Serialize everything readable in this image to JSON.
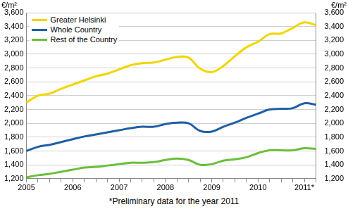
{
  "chart_data": {
    "type": "line",
    "y_label": "€/m²",
    "annotation": "*Preliminary data for the year 2011",
    "categories": [
      "2005",
      null,
      null,
      null,
      "2006",
      null,
      null,
      null,
      "2007",
      null,
      null,
      null,
      "2008",
      null,
      null,
      null,
      "2009",
      null,
      null,
      null,
      "2010",
      null,
      null,
      null,
      "2011*",
      null
    ],
    "series": [
      {
        "name": "Greater Helsinki",
        "color": "#f2d500",
        "values": [
          2300,
          2400,
          2430,
          2500,
          2560,
          2620,
          2680,
          2720,
          2780,
          2840,
          2870,
          2880,
          2920,
          2960,
          2950,
          2790,
          2740,
          2830,
          2970,
          3100,
          3180,
          3290,
          3300,
          3380,
          3460,
          3420
        ]
      },
      {
        "name": "Whole Country",
        "color": "#1f5fa6",
        "values": [
          1600,
          1660,
          1690,
          1730,
          1770,
          1810,
          1840,
          1870,
          1900,
          1930,
          1950,
          1950,
          1990,
          2010,
          2000,
          1890,
          1880,
          1950,
          2010,
          2080,
          2140,
          2200,
          2210,
          2220,
          2290,
          2270
        ]
      },
      {
        "name": "Rest of the Country",
        "color": "#6bbf3a",
        "values": [
          1220,
          1250,
          1270,
          1300,
          1330,
          1360,
          1370,
          1390,
          1410,
          1430,
          1430,
          1440,
          1470,
          1490,
          1470,
          1400,
          1410,
          1460,
          1480,
          1510,
          1570,
          1610,
          1610,
          1610,
          1640,
          1630
        ]
      }
    ],
    "ylim": [
      1200,
      3600
    ],
    "yticks": [
      1200,
      1400,
      1600,
      1800,
      2000,
      2200,
      2400,
      2600,
      2800,
      3000,
      3200,
      3400,
      3600
    ],
    "y2lim": [
      1200,
      3600
    ],
    "y2ticks": [
      1200,
      1400,
      1600,
      1800,
      2000,
      2200,
      2400,
      2600,
      2800,
      3000,
      3200,
      3400,
      3600
    ],
    "grid": true,
    "legend": "top-left"
  }
}
